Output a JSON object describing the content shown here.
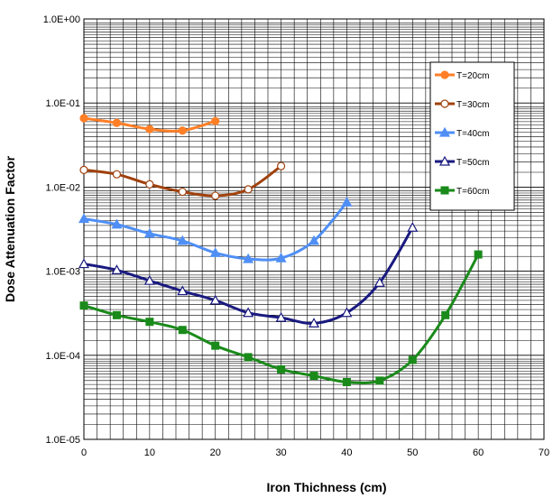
{
  "chart_data": {
    "type": "line",
    "title": "",
    "xlabel": "Iron Thichness (cm)",
    "ylabel": "Dose Attenuation Factor",
    "xlim": [
      0,
      70
    ],
    "ylim": [
      1e-05,
      1
    ],
    "y_scale": "log",
    "grid": true,
    "legend_position": "right",
    "x_ticks": [
      "0",
      "10",
      "20",
      "30",
      "40",
      "50",
      "60",
      "70"
    ],
    "y_ticks": [
      "1.0E-05",
      "1.0E-04",
      "1.0E-03",
      "1.0E-02",
      "1.0E-01",
      "1.0E+00"
    ],
    "series": [
      {
        "name": "T=20cm",
        "color": "#ff7f27",
        "marker": "circle-filled",
        "x": [
          0,
          5,
          10,
          15,
          20
        ],
        "y": [
          0.066,
          0.058,
          0.049,
          0.047,
          0.061
        ]
      },
      {
        "name": "T=30cm",
        "color": "#a0410d",
        "marker": "circle-open",
        "x": [
          0,
          5,
          10,
          15,
          20,
          25,
          30
        ],
        "y": [
          0.016,
          0.0142,
          0.0108,
          0.0088,
          0.0079,
          0.0094,
          0.0178
        ]
      },
      {
        "name": "T=40cm",
        "color": "#4f8ff5",
        "marker": "triangle-filled",
        "x": [
          0,
          5,
          10,
          15,
          20,
          25,
          30,
          35,
          40
        ],
        "y": [
          0.0042,
          0.0036,
          0.0028,
          0.0023,
          0.00165,
          0.0014,
          0.00143,
          0.0023,
          0.0066
        ]
      },
      {
        "name": "T=50cm",
        "color": "#1a1a80",
        "marker": "triangle-open",
        "x": [
          0,
          5,
          10,
          15,
          20,
          25,
          30,
          35,
          40,
          45,
          50
        ],
        "y": [
          0.00122,
          0.00103,
          0.00077,
          0.00058,
          0.00045,
          0.00032,
          0.00028,
          0.00024,
          0.00032,
          0.00073,
          0.0033
        ]
      },
      {
        "name": "T=60cm",
        "color": "#1a8a1a",
        "marker": "square-filled",
        "x": [
          0,
          5,
          10,
          15,
          20,
          25,
          30,
          35,
          40,
          45,
          50,
          55,
          60
        ],
        "y": [
          0.00039,
          0.0003,
          0.00025,
          0.0002,
          0.00013,
          9.5e-05,
          6.8e-05,
          5.7e-05,
          4.8e-05,
          5e-05,
          8.8e-05,
          0.0003,
          0.00158
        ]
      }
    ]
  }
}
